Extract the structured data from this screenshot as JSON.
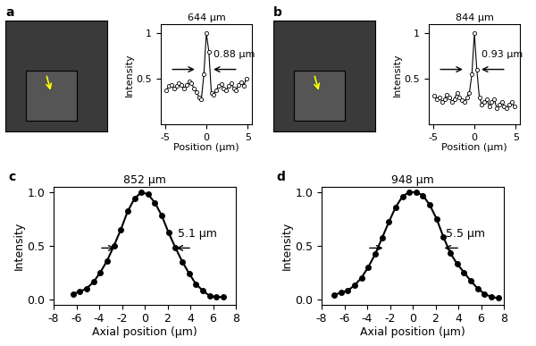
{
  "chart_data": [
    {
      "panel": "a",
      "type": "line",
      "title": "644 μm",
      "annotation": "0.88 μm",
      "xlabel": "Position (μm)",
      "ylabel": "Intensity",
      "color": "#000000",
      "marker": "open circle",
      "x": [
        -4.8,
        -4.5,
        -4.2,
        -3.9,
        -3.6,
        -3.3,
        -3.0,
        -2.7,
        -2.4,
        -2.1,
        -1.8,
        -1.5,
        -1.2,
        -0.9,
        -0.6,
        -0.3,
        0,
        0.3,
        0.6,
        0.9,
        1.2,
        1.5,
        1.8,
        2.1,
        2.4,
        2.7,
        3.0,
        3.3,
        3.6,
        3.9,
        4.2,
        4.5,
        4.8
      ],
      "values": [
        0.38,
        0.42,
        0.43,
        0.4,
        0.42,
        0.45,
        0.43,
        0.4,
        0.43,
        0.47,
        0.45,
        0.4,
        0.36,
        0.3,
        0.28,
        0.55,
        1.0,
        0.8,
        0.35,
        0.33,
        0.38,
        0.42,
        0.44,
        0.4,
        0.38,
        0.42,
        0.45,
        0.4,
        0.38,
        0.43,
        0.46,
        0.42,
        0.5
      ],
      "xlim": [
        -5.5,
        5.5
      ],
      "ylim": [
        0,
        1.1
      ],
      "xticks": [
        -5,
        0,
        5
      ],
      "yticks": [
        0.5,
        1
      ]
    },
    {
      "panel": "b",
      "type": "line",
      "title": "844 μm",
      "annotation": "0.93 μm",
      "xlabel": "Position (μm)",
      "ylabel": "Intensity",
      "color": "#000000",
      "marker": "open circle",
      "x": [
        -4.8,
        -4.5,
        -4.2,
        -3.9,
        -3.6,
        -3.3,
        -3.0,
        -2.7,
        -2.4,
        -2.1,
        -1.8,
        -1.5,
        -1.2,
        -0.9,
        -0.6,
        -0.3,
        0,
        0.3,
        0.6,
        0.9,
        1.2,
        1.5,
        1.8,
        2.1,
        2.4,
        2.7,
        3.0,
        3.3,
        3.6,
        3.9,
        4.2,
        4.5,
        4.8
      ],
      "values": [
        0.32,
        0.28,
        0.3,
        0.25,
        0.28,
        0.33,
        0.3,
        0.25,
        0.28,
        0.35,
        0.3,
        0.27,
        0.25,
        0.3,
        0.35,
        0.55,
        1.0,
        0.6,
        0.3,
        0.22,
        0.25,
        0.28,
        0.2,
        0.25,
        0.28,
        0.18,
        0.22,
        0.25,
        0.2,
        0.18,
        0.22,
        0.25,
        0.2
      ],
      "xlim": [
        -5.5,
        5.5
      ],
      "ylim": [
        0,
        1.1
      ],
      "xticks": [
        -5,
        0,
        5
      ],
      "yticks": [
        0.5,
        1
      ]
    },
    {
      "panel": "c",
      "type": "line",
      "title": "852 μm",
      "annotation": "5.1 μm",
      "xlabel": "Axial position (μm)",
      "ylabel": "Intensity",
      "color": "#000000",
      "marker": "circle",
      "x": [
        -6.3,
        -5.7,
        -5.1,
        -4.5,
        -3.9,
        -3.3,
        -2.7,
        -2.1,
        -1.5,
        -0.9,
        -0.3,
        0.3,
        0.9,
        1.5,
        2.1,
        2.7,
        3.3,
        3.9,
        4.5,
        5.1,
        5.7,
        6.3,
        6.9
      ],
      "values": [
        0.05,
        0.07,
        0.1,
        0.16,
        0.25,
        0.36,
        0.5,
        0.65,
        0.82,
        0.94,
        1.0,
        0.98,
        0.9,
        0.78,
        0.62,
        0.48,
        0.35,
        0.24,
        0.14,
        0.08,
        0.03,
        0.02,
        0.02
      ],
      "xlim": [
        -8,
        8
      ],
      "ylim": [
        -0.05,
        1.05
      ],
      "xticks": [
        -8,
        -6,
        -4,
        -2,
        0,
        2,
        4,
        6,
        8
      ],
      "yticks": [
        {
          "value": 0,
          "label": "0.0"
        },
        {
          "value": 0.5,
          "label": "0.5"
        },
        {
          "value": 1,
          "label": "1.0"
        }
      ]
    },
    {
      "panel": "d",
      "type": "line",
      "title": "948 μm",
      "annotation": "5.5 μm",
      "xlabel": "Axial position (μm)",
      "ylabel": "Intensity",
      "color": "#000000",
      "marker": "circle",
      "x": [
        -6.9,
        -6.3,
        -5.7,
        -5.1,
        -4.5,
        -3.9,
        -3.3,
        -2.7,
        -2.1,
        -1.5,
        -0.9,
        -0.3,
        0.3,
        0.9,
        1.5,
        2.1,
        2.7,
        3.3,
        3.9,
        4.5,
        5.1,
        5.7,
        6.3,
        6.9,
        7.5
      ],
      "values": [
        0.04,
        0.06,
        0.08,
        0.13,
        0.2,
        0.3,
        0.42,
        0.57,
        0.72,
        0.86,
        0.96,
        1.0,
        1.0,
        0.97,
        0.88,
        0.75,
        0.58,
        0.43,
        0.33,
        0.25,
        0.17,
        0.1,
        0.05,
        0.02,
        0.01
      ],
      "xlim": [
        -8,
        8
      ],
      "ylim": [
        -0.05,
        1.05
      ],
      "xticks": [
        -8,
        -6,
        -4,
        -2,
        0,
        2,
        4,
        6,
        8
      ],
      "yticks": [
        {
          "value": 0,
          "label": "0.0"
        },
        {
          "value": 0.5,
          "label": "0.5"
        },
        {
          "value": 1,
          "label": "1.0"
        }
      ]
    }
  ]
}
